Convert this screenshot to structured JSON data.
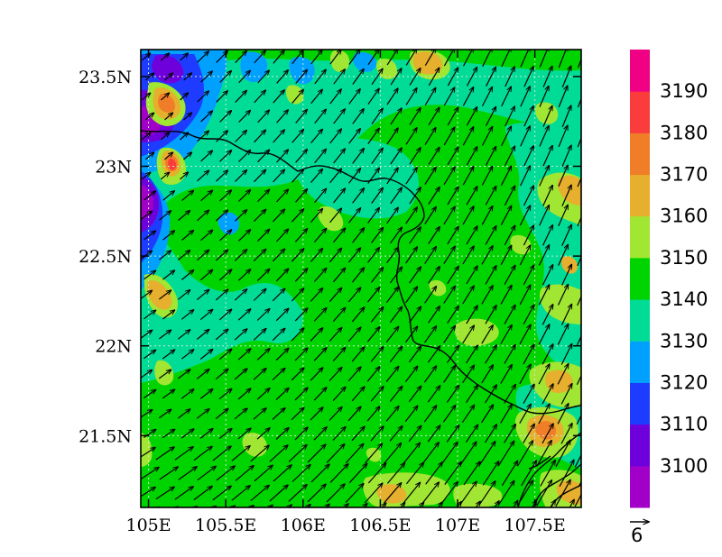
{
  "map": {
    "lon_range": [
      104.95,
      107.8
    ],
    "lat_range": [
      21.1,
      23.65
    ],
    "lon_ticks": [
      {
        "value": 105.0,
        "label": "105E"
      },
      {
        "value": 105.5,
        "label": "105.5E"
      },
      {
        "value": 106.0,
        "label": "106E"
      },
      {
        "value": 106.5,
        "label": "106.5E"
      },
      {
        "value": 107.0,
        "label": "107E"
      },
      {
        "value": 107.5,
        "label": "107.5E"
      }
    ],
    "lat_ticks": [
      {
        "value": 21.5,
        "label": "21.5N"
      },
      {
        "value": 22.0,
        "label": "22N"
      },
      {
        "value": 22.5,
        "label": "22.5N"
      },
      {
        "value": 23.0,
        "label": "23N"
      },
      {
        "value": 23.5,
        "label": "23.5N"
      }
    ],
    "gridlines": true,
    "background_level_color": "#00d400"
  },
  "colorbar": {
    "levels": [
      3100,
      3110,
      3120,
      3130,
      3140,
      3150,
      3160,
      3170,
      3180,
      3190
    ],
    "colors": [
      "#a000c8",
      "#6e00dc",
      "#1e3cff",
      "#00a0ff",
      "#00dc96",
      "#00d400",
      "#a0e632",
      "#e6af2d",
      "#f07d28",
      "#fa3c3c",
      "#f00082"
    ]
  },
  "vector_reference": {
    "magnitude": "6"
  }
}
